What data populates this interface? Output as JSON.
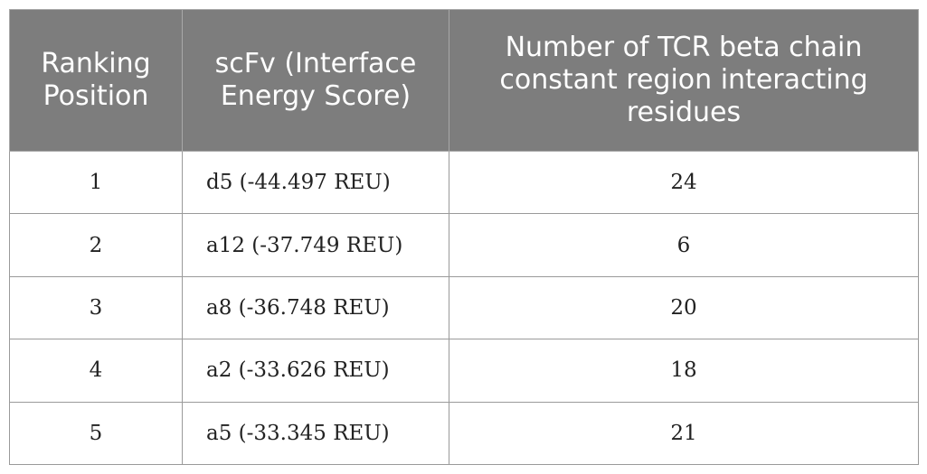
{
  "table": {
    "headers": [
      "Ranking Position",
      "scFv (Interface Energy Score)",
      "Number of TCR beta chain constant region interacting residues"
    ],
    "rows": [
      {
        "rank": "1",
        "scfv": "d5 (-44.497 REU)",
        "count": "24"
      },
      {
        "rank": "2",
        "scfv": "a12 (-37.749 REU)",
        "count": "6"
      },
      {
        "rank": "3",
        "scfv": "a8 (-36.748 REU)",
        "count": "20"
      },
      {
        "rank": "4",
        "scfv": "a2 (-33.626 REU)",
        "count": "18"
      },
      {
        "rank": "5",
        "scfv": "a5 (-33.345 REU)",
        "count": "21"
      }
    ]
  },
  "colors": {
    "header_bg": "#7d7d7d",
    "header_text": "#ffffff",
    "border": "#9a9a9a"
  }
}
